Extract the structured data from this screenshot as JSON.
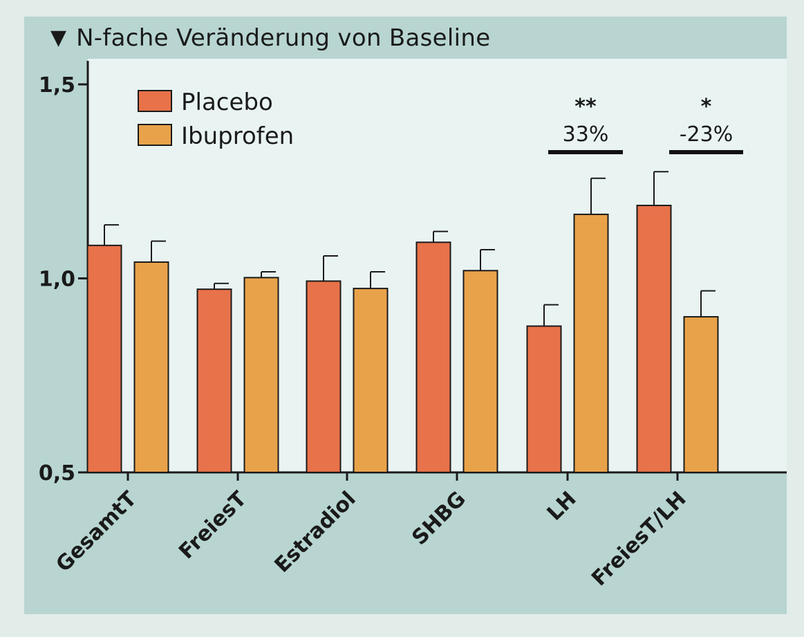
{
  "title": "N-fache Veränderung von Baseline",
  "title_marker": "▼",
  "colors": {
    "placebo": "#e8724a",
    "ibuprofen": "#e8a24a",
    "outer_background": "#b8d5d1",
    "plot_background": "#e9f4f2"
  },
  "chart_data": {
    "type": "bar",
    "title": "N-fache Veränderung von Baseline",
    "xlabel": "",
    "ylabel": "",
    "ylim": [
      0.5,
      1.55
    ],
    "yticks": [
      0.5,
      1.0,
      1.5
    ],
    "ytick_labels": [
      "0,5",
      "1,0",
      "1,5"
    ],
    "categories": [
      "GesamtT",
      "FreiesT",
      "Estradiol",
      "SHBG",
      "LH",
      "FreiesT/LH"
    ],
    "series": [
      {
        "name": "Placebo",
        "values": [
          1.085,
          0.972,
          0.993,
          1.093,
          0.877,
          1.188
        ],
        "error": [
          0.053,
          0.015,
          0.065,
          0.028,
          0.055,
          0.087
        ]
      },
      {
        "name": "Ibuprofen",
        "values": [
          1.042,
          1.002,
          0.974,
          1.02,
          1.165,
          0.901
        ],
        "error": [
          0.054,
          0.015,
          0.043,
          0.054,
          0.093,
          0.067
        ]
      }
    ],
    "annotations": [
      {
        "category": "LH",
        "stars": "**",
        "label": "33%"
      },
      {
        "category": "FreiesT/LH",
        "stars": "*",
        "label": "-23%"
      }
    ],
    "legend_position": "top-left",
    "grid": false
  }
}
